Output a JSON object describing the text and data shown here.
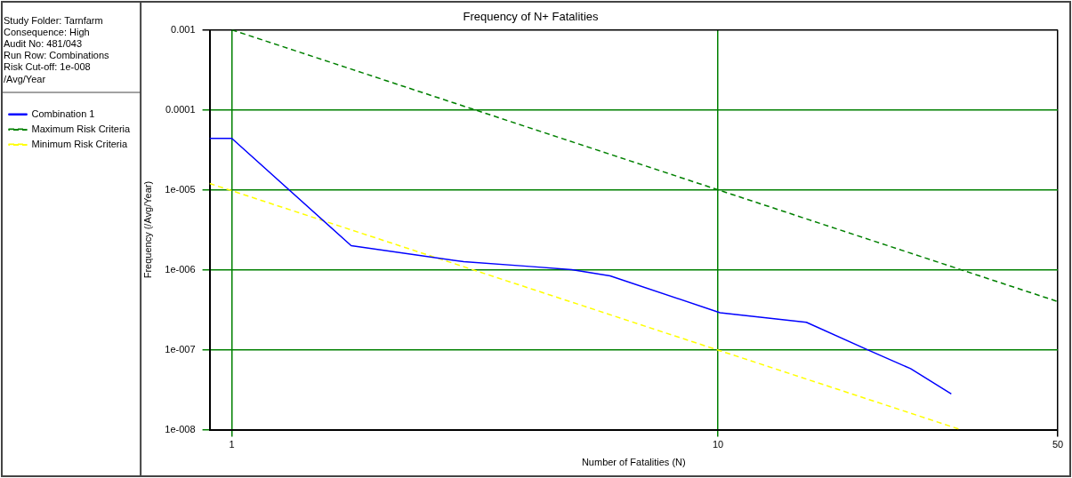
{
  "chart_data": {
    "type": "line",
    "title": "Frequency of N+ Fatalities",
    "xlabel": "Number of Fatalities (N)",
    "ylabel": "Frequency (/Avg/Year)",
    "annotations": [
      "Study Folder: Tarnfarm",
      "Consequence: High",
      "Audit No: 481/043",
      "Run Row: Combinations",
      "Risk Cut-off: 1e-008",
      "/Avg/Year"
    ],
    "log": "xy",
    "grid": true,
    "legend": "left",
    "marker": "none",
    "xlim": [
      0.9,
      50
    ],
    "xticks": [
      1,
      10,
      50
    ],
    "ylim": [
      1e-08,
      0.001
    ],
    "yticks": [
      {
        "value": 1e-08,
        "label": "1e-008"
      },
      {
        "value": 1e-07,
        "label": "1e-007"
      },
      {
        "value": 1e-06,
        "label": "1e-006"
      },
      {
        "value": 1e-05,
        "label": "1e-005"
      },
      {
        "value": 0.0001,
        "label": "0.0001"
      },
      {
        "value": 0.001,
        "label": "0.001"
      }
    ],
    "series": [
      {
        "name": "Combination 1",
        "color": "#0000ff",
        "line_style": "solid",
        "x": [
          0.9,
          1,
          1.76,
          3.0,
          4.1,
          5.0,
          6.0,
          10.1,
          15.2,
          20.3,
          24.9,
          30.2
        ],
        "values": [
          4.4e-05,
          4.4e-05,
          2e-06,
          1.26e-06,
          1.1e-06,
          1e-06,
          8.4e-07,
          2.9e-07,
          2.2e-07,
          1e-07,
          5.8e-08,
          2.8e-08
        ]
      },
      {
        "name": "Maximum Risk Criteria",
        "color": "#008000",
        "line_style": "dashed",
        "x": [
          1,
          50
        ],
        "values": [
          0.001,
          4e-07
        ]
      },
      {
        "name": "Minimum Risk Criteria",
        "color": "#ffff00",
        "line_style": "dashed",
        "x": [
          0.9,
          31.6
        ],
        "values": [
          1.2e-05,
          1e-08
        ]
      }
    ]
  }
}
